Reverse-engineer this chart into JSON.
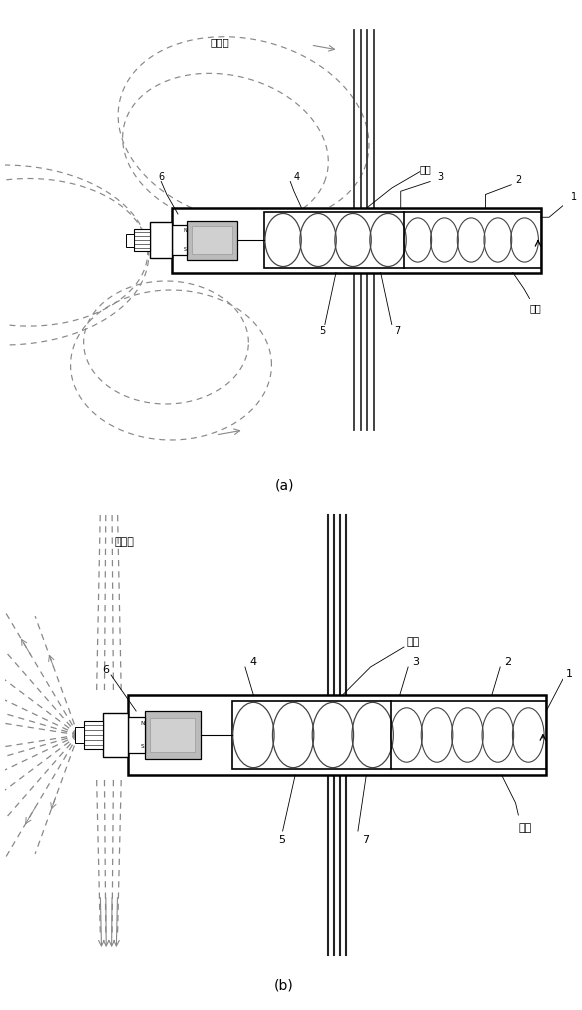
{
  "fig_width": 5.58,
  "fig_height": 10.0,
  "bg_color": "#ffffff",
  "line_color": "#000000",
  "dashed_color": "#888888",
  "gray_fill": "#bbbbbb",
  "light_gray": "#d0d0d0",
  "label_a": "(a)",
  "label_b": "(b)",
  "text_dianchang_a": "电磁场",
  "text_dianchang_b": "电磁场",
  "text_shekong": "射孔",
  "text_taoguan": "套管"
}
